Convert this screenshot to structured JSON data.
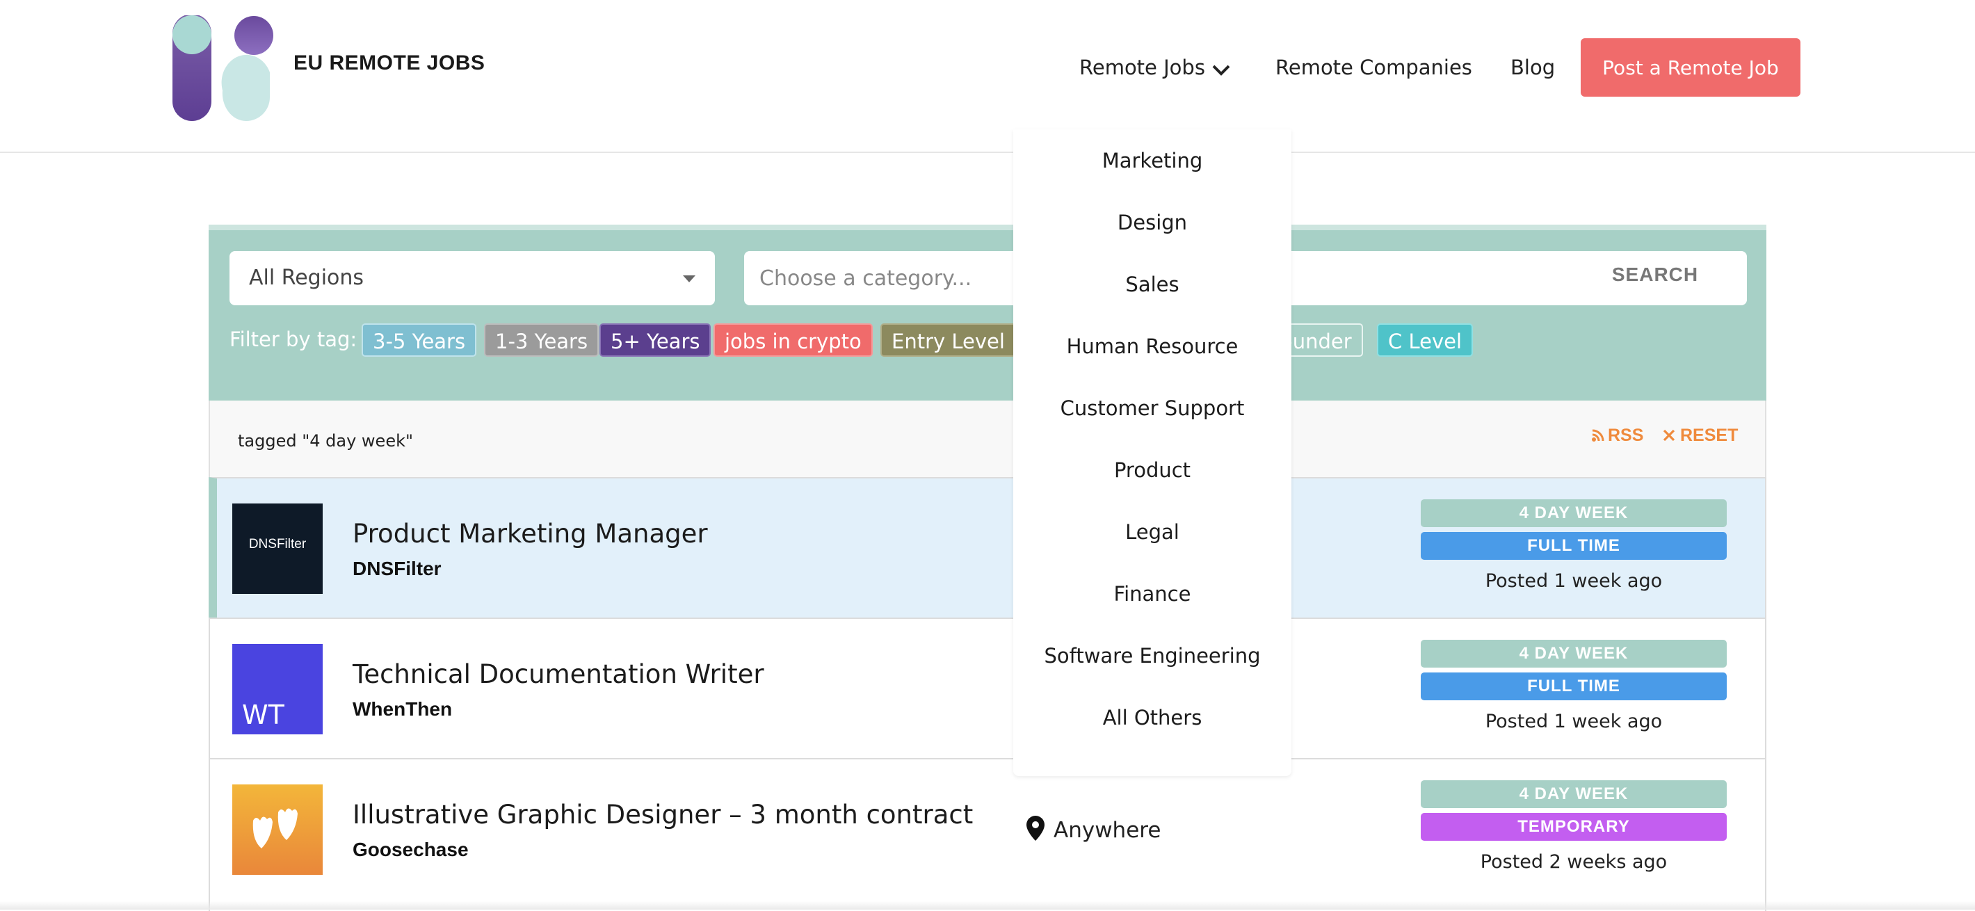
{
  "brand": {
    "name": "EU REMOTE JOBS"
  },
  "nav": {
    "remote_jobs": "Remote Jobs",
    "remote_companies": "Remote Companies",
    "blog": "Blog",
    "post_job": "Post a Remote Job"
  },
  "dropdown": {
    "items": [
      "Marketing",
      "Design",
      "Sales",
      "Human Resource",
      "Customer Support",
      "Product",
      "Legal",
      "Finance",
      "Software Engineering",
      "All Others"
    ]
  },
  "search": {
    "region": "All Regions",
    "category_placeholder": "Choose a category...",
    "search_label": "SEARCH",
    "filter_label": "Filter by tag:",
    "tags": [
      {
        "label": "3-5 Years",
        "color": "#7fbfd1"
      },
      {
        "label": "1-3 Years",
        "color": "#9b9b9b"
      },
      {
        "label": "5+ Years",
        "color": "#5b3f8e"
      },
      {
        "label": "jobs in crypto",
        "color": "#f06b6b"
      },
      {
        "label": "Entry Level",
        "color": "#8c8a5e"
      },
      {
        "label": "ounder",
        "color": "#a7d0c6"
      },
      {
        "label": "C Level",
        "color": "#4fc3c9"
      }
    ]
  },
  "filter_bar": {
    "tagged_text": "tagged \"4 day week\"",
    "rss": "RSS",
    "reset": "RESET"
  },
  "jobs": [
    {
      "title": "Product Marketing Manager",
      "company": "DNSFilter",
      "logo_text": "DNSFilter",
      "location": "",
      "badge_a": "4 DAY WEEK",
      "badge_b": "FULL TIME",
      "badge_b_color": "#4a9be8",
      "posted": "Posted 1 week ago"
    },
    {
      "title": "Technical Documentation Writer",
      "company": "WhenThen",
      "logo_text": "WT",
      "location": "",
      "badge_a": "4 DAY WEEK",
      "badge_b": "FULL TIME",
      "badge_b_color": "#4a9be8",
      "posted": "Posted 1 week ago"
    },
    {
      "title": "Illustrative Graphic Designer – 3 month contract",
      "company": "Goosechase",
      "logo_text": "",
      "location": "Anywhere",
      "badge_a": "4 DAY WEEK",
      "badge_b": "TEMPORARY",
      "badge_b_color": "#c35ef0",
      "posted": "Posted 2 weeks ago"
    }
  ],
  "colors": {
    "accent": "#a7d0c6",
    "post_button": "#f06b6b",
    "link_orange": "#ef8a3c"
  },
  "icons": [
    "logo-mark",
    "chevron-down-icon",
    "caret-down-icon",
    "rss-icon",
    "close-icon",
    "map-pin-icon",
    "goose-feet-icon"
  ]
}
